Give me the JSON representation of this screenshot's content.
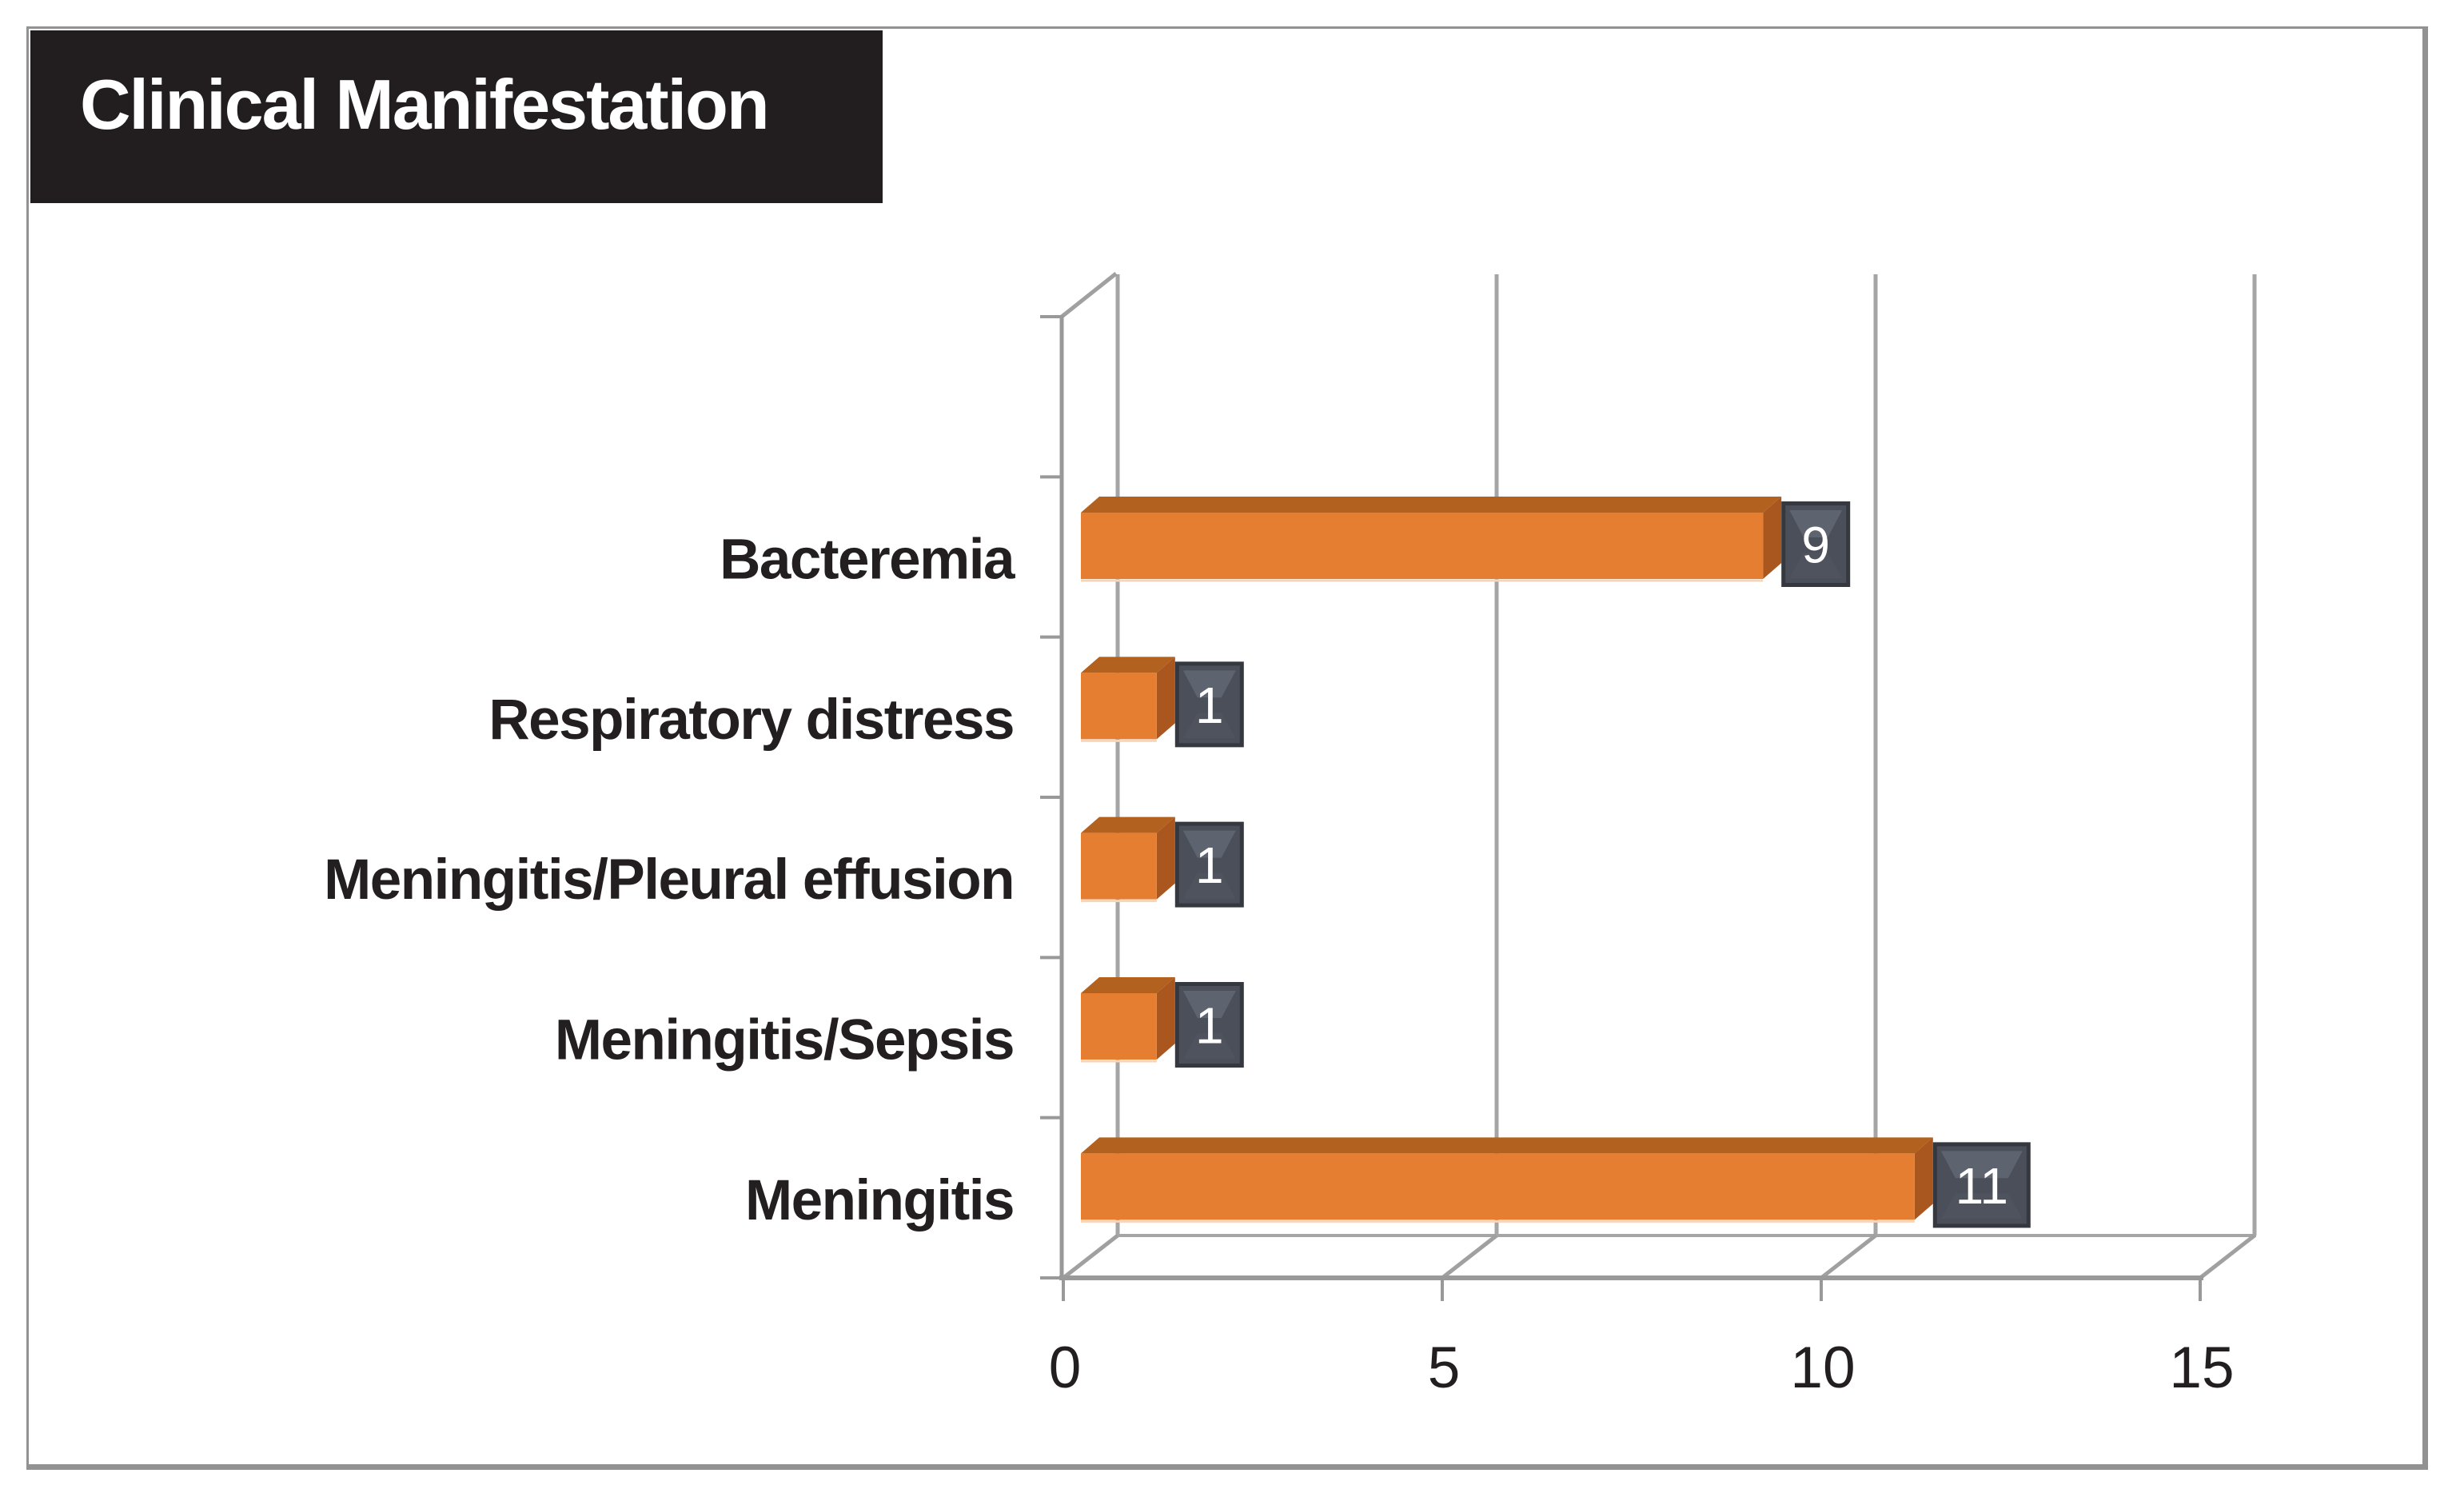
{
  "chart_data": {
    "type": "bar",
    "orientation": "horizontal",
    "style": "3d",
    "title": "Clinical Manifestation",
    "categories": [
      "Bacteremia",
      "Respiratory distress",
      "Meningitis/Pleural effusion",
      "Meningitis/Sepsis",
      "Meningitis"
    ],
    "values": [
      9,
      1,
      1,
      1,
      11
    ],
    "data_labels": [
      "9",
      "1",
      "1",
      "1",
      "11"
    ],
    "x_ticks": [
      "0",
      "5",
      "10",
      "15"
    ],
    "x_tick_values": [
      0,
      5,
      10,
      15
    ],
    "xlim": [
      0,
      15
    ],
    "ylabel": "",
    "xlabel": "",
    "grid": true,
    "legend": false,
    "leading_empty_slot": true
  },
  "colors": {
    "bar_front": "#e67e32",
    "bar_top": "#b3611f",
    "bar_side": "#a9571e",
    "bar_underline": "#f6d5b8",
    "grid_line": "#a5a5a5",
    "axis_line": "#999999",
    "diagonal_line": "#a0a0a0",
    "label_box_border": "#35383f",
    "label_box_fill": "#4b4f59",
    "label_box_light": "#5e6370",
    "label_box_shade": "#4f535e",
    "label_text": "#ffffff",
    "axis_text": "#231f20",
    "category_text": "#231f20",
    "title_bg": "#221e1f",
    "title_text": "#ffffff",
    "page_border": "#929292",
    "page_bg": "#ffffff"
  }
}
